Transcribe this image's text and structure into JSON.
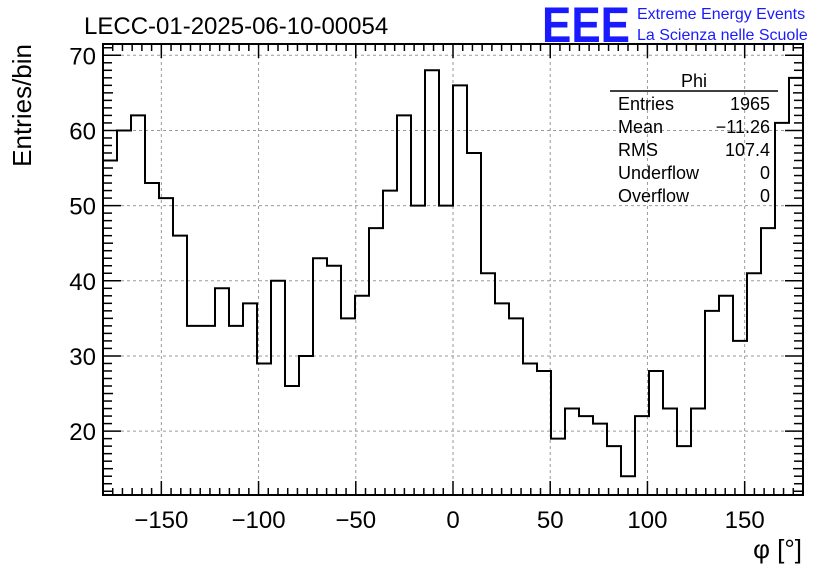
{
  "chart_data": {
    "type": "bar",
    "style": "step-histogram",
    "title": "LECC-01-2025-06-10-00054",
    "xlabel": "φ [°]",
    "ylabel": "Entries/bin",
    "xlim": [
      -180,
      180
    ],
    "ylim": [
      11.5,
      71.5
    ],
    "grid": true,
    "bin_width": 7.2,
    "xticks": [
      -150,
      -100,
      -50,
      0,
      50,
      100,
      150
    ],
    "xtick_labels": [
      "−150",
      "−100",
      "−50",
      "0",
      "50",
      "100",
      "150"
    ],
    "yticks": [
      20,
      30,
      40,
      50,
      60,
      70
    ],
    "ytick_labels": [
      "20",
      "30",
      "40",
      "50",
      "60",
      "70"
    ],
    "values": [
      56,
      60,
      62,
      53,
      51,
      46,
      34,
      34,
      39,
      34,
      37,
      29,
      40,
      26,
      30,
      43,
      42,
      35,
      38,
      47,
      52,
      62,
      50,
      68,
      50,
      66,
      57,
      41,
      37,
      35,
      29,
      28,
      19,
      23,
      22,
      21,
      18,
      14,
      22,
      28,
      23,
      18,
      23,
      36,
      38,
      32,
      41,
      47,
      61,
      67
    ],
    "line_color": "#000000"
  },
  "stats_box": {
    "title": "Phi",
    "rows": [
      {
        "label": "Entries",
        "value": "1965"
      },
      {
        "label": "Mean",
        "value": "−11.26"
      },
      {
        "label": "RMS",
        "value": "107.4"
      },
      {
        "label": "Underflow",
        "value": "0"
      },
      {
        "label": "Overflow",
        "value": "0"
      }
    ]
  },
  "logo": {
    "mark": "EEE",
    "line1": "Extreme Energy Events",
    "line2": "La Scienza nelle Scuole",
    "color": "#1a1aff"
  }
}
